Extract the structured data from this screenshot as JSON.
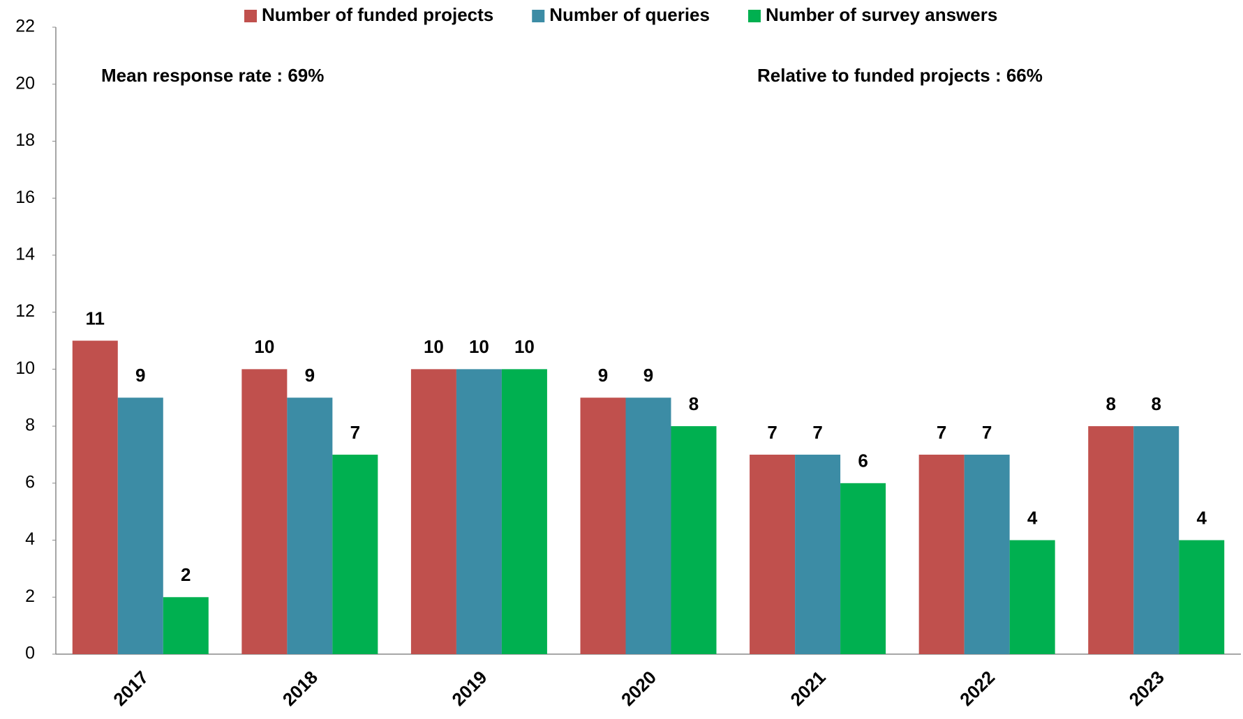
{
  "chart_data": {
    "type": "bar",
    "categories": [
      "2017",
      "2018",
      "2019",
      "2020",
      "2021",
      "2022",
      "2023"
    ],
    "series": [
      {
        "name": "Number of funded projects",
        "color": "#c0504d",
        "values": [
          11,
          10,
          10,
          9,
          7,
          7,
          8
        ]
      },
      {
        "name": "Number of queries",
        "color": "#3c8ca5",
        "values": [
          9,
          9,
          10,
          9,
          7,
          7,
          8
        ]
      },
      {
        "name": "Number of survey answers",
        "color": "#00b050",
        "values": [
          2,
          7,
          10,
          8,
          6,
          4,
          4
        ]
      }
    ],
    "annotations": [
      "Mean response rate : 69%",
      "Relative to funded projects : 66%"
    ],
    "ylim": [
      0,
      22
    ],
    "yticks": [
      0,
      2,
      4,
      6,
      8,
      10,
      12,
      14,
      16,
      18,
      20,
      22
    ],
    "grid": false,
    "legend": "top"
  }
}
